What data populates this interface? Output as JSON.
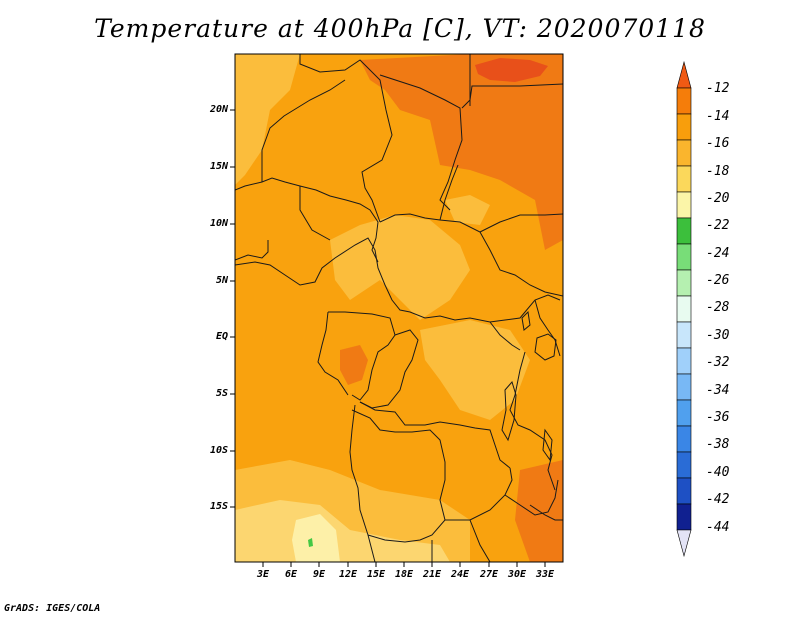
{
  "title": "Temperature at 400hPa [C], VT: 2020070118",
  "footer": "GrADS: IGES/COLA",
  "y_axis_labels": [
    "20N",
    "15N",
    "10N",
    "5N",
    "EQ",
    "5S",
    "10S",
    "15S"
  ],
  "x_axis_labels": [
    "3E",
    "6E",
    "9E",
    "12E",
    "15E",
    "18E",
    "21E",
    "24E",
    "27E",
    "30E",
    "33E"
  ],
  "colorbar": {
    "labels": [
      "-12",
      "-14",
      "-16",
      "-18",
      "-20",
      "-22",
      "-24",
      "-26",
      "-28",
      "-30",
      "-32",
      "-34",
      "-36",
      "-38",
      "-40",
      "-42",
      "-44"
    ],
    "colors": [
      "#f05a14",
      "#f57d0a",
      "#f89e0c",
      "#fab52d",
      "#fbd85b",
      "#fbf5a8",
      "#3cbf3c",
      "#78dd78",
      "#b5f0b0",
      "#e8fbf0",
      "#c8e6fb",
      "#a0d0fa",
      "#78b8f5",
      "#50a0ee",
      "#3a86e6",
      "#2a6cd6",
      "#1e50c4",
      "#102090",
      "#e3e3f6"
    ]
  },
  "map_colors": {
    "base": "#f9a20e",
    "warm": "#f07a14",
    "hot": "#e8501a",
    "cool": "#fbbd3c",
    "cooler": "#fcd670",
    "coolest": "#fdf0a8",
    "green": "#44c844"
  }
}
